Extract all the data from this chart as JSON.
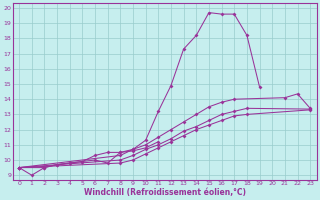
{
  "xlabel": "Windchill (Refroidissement éolien,°C)",
  "xlim": [
    -0.5,
    23.5
  ],
  "ylim": [
    8.7,
    20.3
  ],
  "xticks": [
    0,
    1,
    2,
    3,
    4,
    5,
    6,
    7,
    8,
    9,
    10,
    11,
    12,
    13,
    14,
    15,
    16,
    17,
    18,
    19,
    20,
    21,
    22,
    23
  ],
  "yticks": [
    9,
    10,
    11,
    12,
    13,
    14,
    15,
    16,
    17,
    18,
    19,
    20
  ],
  "bg_color": "#c6eeee",
  "line_color": "#993399",
  "grid_color": "#99cccc",
  "spine_color": "#993399",
  "lines": [
    {
      "x": [
        0,
        1,
        2,
        3,
        4,
        5,
        6,
        7,
        8,
        9,
        10,
        11,
        12,
        13,
        14,
        15,
        16,
        17,
        18,
        19
      ],
      "y": [
        9.5,
        9.0,
        9.5,
        9.7,
        9.8,
        9.9,
        10.0,
        9.8,
        10.5,
        10.7,
        11.3,
        13.2,
        14.9,
        17.3,
        18.2,
        19.7,
        19.6,
        19.6,
        18.2,
        14.8
      ]
    },
    {
      "x": [
        0,
        8,
        9,
        10,
        11,
        12,
        13,
        14,
        15,
        16,
        17,
        21,
        22,
        23
      ],
      "y": [
        9.5,
        10.3,
        10.7,
        11.0,
        11.5,
        12.0,
        12.5,
        13.0,
        13.5,
        13.8,
        14.0,
        14.1,
        14.35,
        13.4
      ]
    },
    {
      "x": [
        0,
        2,
        3,
        4,
        5,
        6,
        7,
        8,
        9,
        10,
        11
      ],
      "y": [
        9.5,
        9.5,
        9.7,
        9.8,
        9.9,
        10.3,
        10.5,
        10.5,
        10.6,
        10.8,
        11.2
      ]
    },
    {
      "x": [
        0,
        8,
        9,
        10,
        11,
        12,
        13,
        14,
        15,
        16,
        17,
        18,
        23
      ],
      "y": [
        9.5,
        10.0,
        10.3,
        10.7,
        11.0,
        11.4,
        11.9,
        12.2,
        12.6,
        13.0,
        13.2,
        13.4,
        13.35
      ]
    },
    {
      "x": [
        0,
        8,
        9,
        10,
        11,
        12,
        13,
        14,
        15,
        16,
        17,
        18,
        23
      ],
      "y": [
        9.5,
        9.8,
        10.0,
        10.4,
        10.8,
        11.2,
        11.6,
        12.0,
        12.3,
        12.6,
        12.9,
        13.0,
        13.3
      ]
    }
  ],
  "tick_fontsize": 4.5,
  "xlabel_fontsize": 5.5,
  "marker_size": 2.0,
  "linewidth": 0.75
}
